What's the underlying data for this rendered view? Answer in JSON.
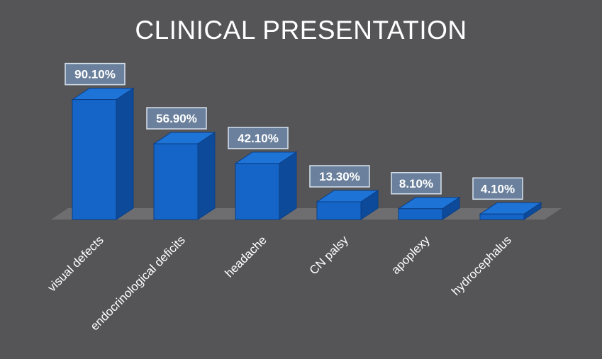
{
  "slide": {
    "title": "CLINICAL PRESENTATION"
  },
  "colors": {
    "background": "#555557",
    "bar_front": "#1565C8",
    "bar_side": "#0D4A9A",
    "bar_top": "#1E73D6",
    "floor": "#6E6E70",
    "label_box": "#6E88A8",
    "label_border": "#D8E2EE"
  },
  "chart_data": {
    "type": "bar",
    "title": "CLINICAL PRESENTATION",
    "categories": [
      "visual defects",
      "endocrinological deficits",
      "headache",
      "CN palsy",
      "apoplexy",
      "hydrocephalus"
    ],
    "values": [
      90.1,
      56.9,
      42.1,
      13.3,
      8.1,
      4.1
    ],
    "data_labels": [
      "90.10%",
      "56.90%",
      "42.10%",
      "13.30%",
      "8.10%",
      "4.10%"
    ],
    "ylim": [
      0,
      100
    ],
    "grid": false,
    "legend": "none",
    "style": "3d-column"
  }
}
